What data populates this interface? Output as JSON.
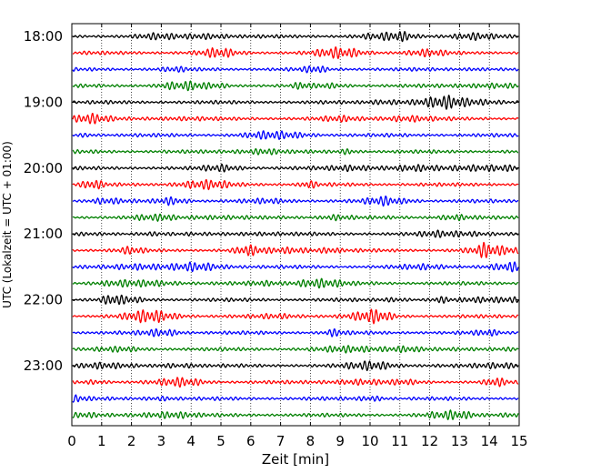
{
  "chart_data": {
    "type": "line",
    "title": "",
    "xlabel": "Zeit  [min]",
    "ylabel": "UTC (Lokalzeit = UTC + 01:00)",
    "xlim": [
      0,
      15
    ],
    "x_ticks": [
      0,
      1,
      2,
      3,
      4,
      5,
      6,
      7,
      8,
      9,
      10,
      11,
      12,
      13,
      14,
      15
    ],
    "y_tick_labels": [
      "18:00",
      "19:00",
      "20:00",
      "21:00",
      "22:00",
      "23:00"
    ],
    "trace_start_times": [
      "18:00",
      "18:15",
      "18:30",
      "18:45",
      "19:00",
      "19:15",
      "19:30",
      "19:45",
      "20:00",
      "20:15",
      "20:30",
      "20:45",
      "21:00",
      "21:15",
      "21:30",
      "21:45",
      "22:00",
      "22:15",
      "22:30",
      "22:45",
      "23:00",
      "23:15",
      "23:30",
      "23:45"
    ],
    "trace_interval_min": 15,
    "trace_colors": [
      "#000000",
      "#ff0000",
      "#0000ff",
      "#008000"
    ],
    "grid": "vertical-dotted"
  }
}
